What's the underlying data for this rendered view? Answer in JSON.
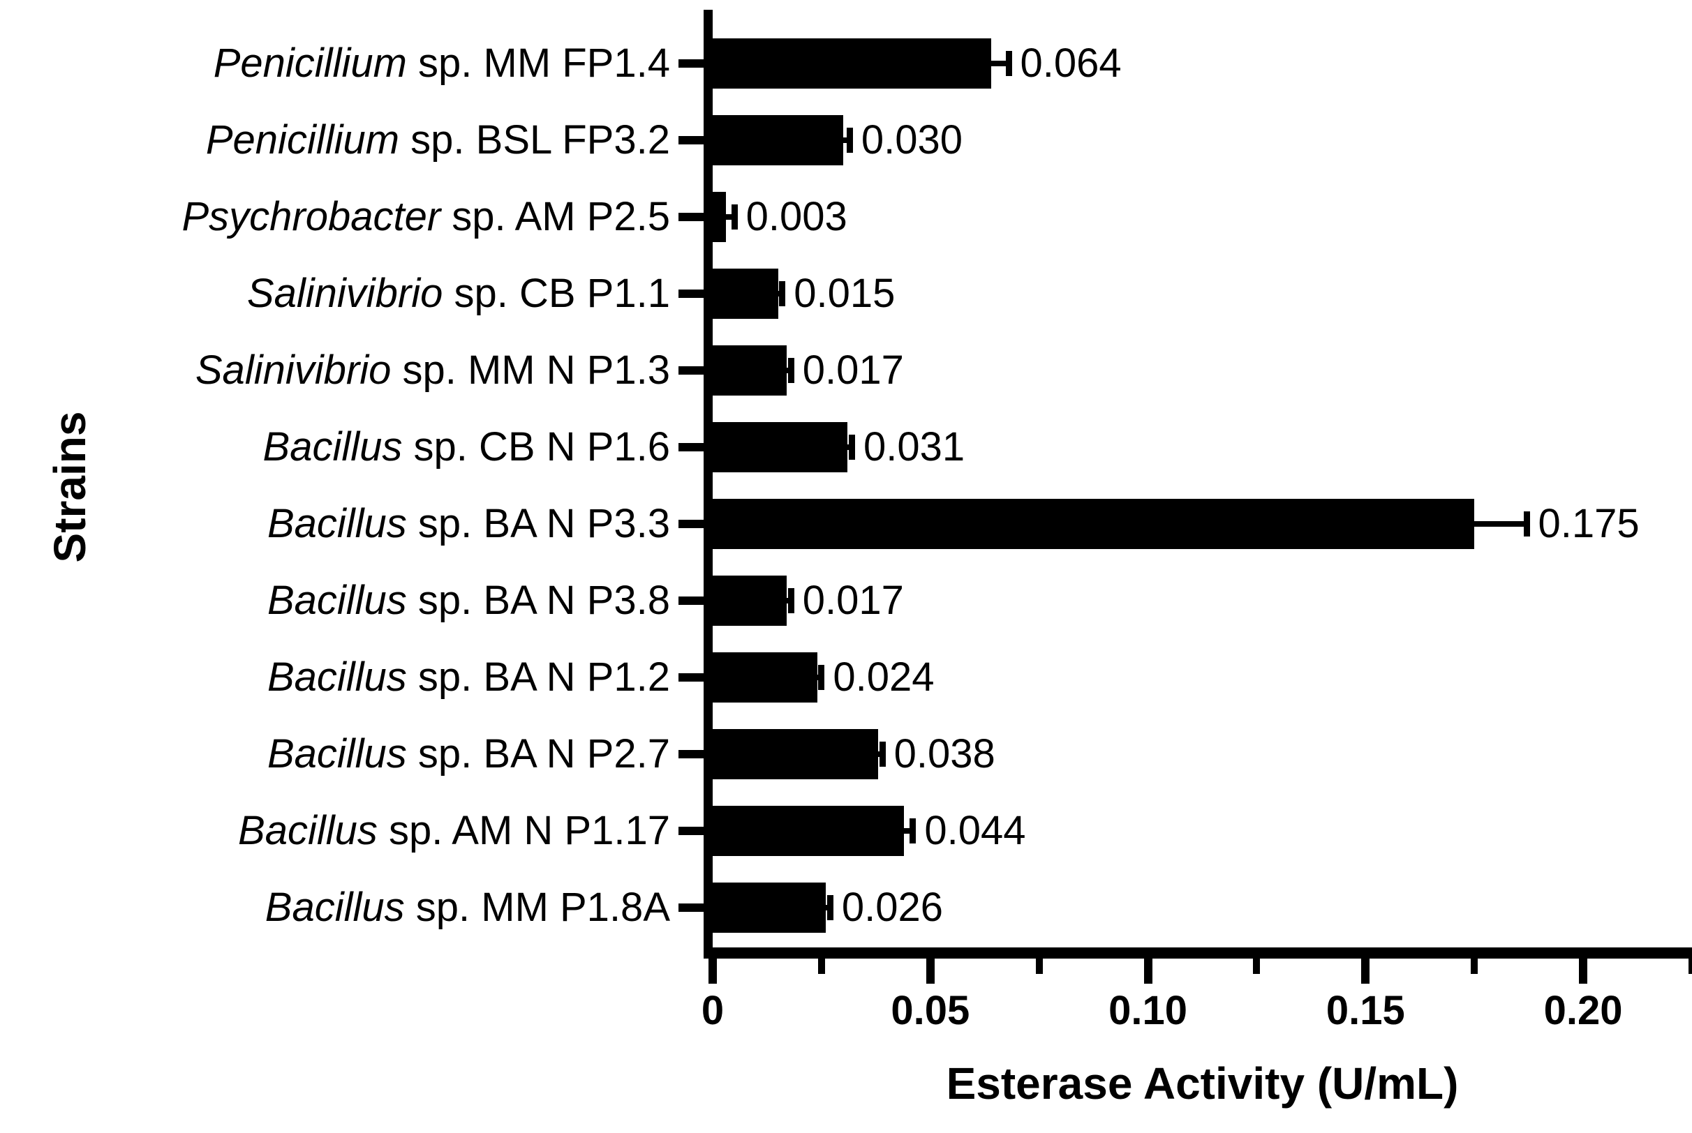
{
  "figure": {
    "background_color": "#ffffff",
    "ink_color": "#000000"
  },
  "chart_data": {
    "type": "bar",
    "orientation": "horizontal",
    "title": "",
    "xlabel": "Esterase Activity (U/mL)",
    "ylabel": "Strains",
    "xlim": [
      0,
      0.225
    ],
    "grid": false,
    "legend": false,
    "bar_color": "#000000",
    "x_major_ticks": [
      {
        "value": 0.0,
        "label": "0"
      },
      {
        "value": 0.05,
        "label": "0.05"
      },
      {
        "value": 0.1,
        "label": "0.10"
      },
      {
        "value": 0.15,
        "label": "0.15"
      },
      {
        "value": 0.2,
        "label": "0.20"
      }
    ],
    "x_minor_tick_values": [
      0.025,
      0.075,
      0.125,
      0.175,
      0.225
    ],
    "bars": [
      {
        "genus": "Penicillium",
        "rest": " sp. MM FP1.4",
        "value": 0.064,
        "error": 0.004,
        "value_label": "0.064"
      },
      {
        "genus": "Penicillium",
        "rest": " sp. BSL FP3.2",
        "value": 0.03,
        "error": 0.0015,
        "value_label": "0.030"
      },
      {
        "genus": "Psychrobacter",
        "rest": " sp. AM P2.5",
        "value": 0.003,
        "error": 0.002,
        "value_label": "0.003"
      },
      {
        "genus": "Salinivibrio",
        "rest": " sp. CB P1.1",
        "value": 0.015,
        "error": 0.001,
        "value_label": "0.015"
      },
      {
        "genus": "Salinivibrio",
        "rest": " sp. MM N P1.3",
        "value": 0.017,
        "error": 0.001,
        "value_label": "0.017"
      },
      {
        "genus": "Bacillus",
        "rest": " sp. CB N P1.6",
        "value": 0.031,
        "error": 0.001,
        "value_label": "0.031"
      },
      {
        "genus": "Bacillus",
        "rest": " sp. BA N P3.3",
        "value": 0.175,
        "error": 0.012,
        "value_label": "0.175"
      },
      {
        "genus": "Bacillus",
        "rest": " sp. BA N P3.8",
        "value": 0.017,
        "error": 0.001,
        "value_label": "0.017"
      },
      {
        "genus": "Bacillus",
        "rest": " sp. BA N P1.2",
        "value": 0.024,
        "error": 0.001,
        "value_label": "0.024"
      },
      {
        "genus": "Bacillus",
        "rest": " sp. BA N P2.7",
        "value": 0.038,
        "error": 0.001,
        "value_label": "0.038"
      },
      {
        "genus": "Bacillus",
        "rest": " sp. AM N P1.17",
        "value": 0.044,
        "error": 0.002,
        "value_label": "0.044"
      },
      {
        "genus": "Bacillus",
        "rest": " sp. MM P1.8A",
        "value": 0.026,
        "error": 0.001,
        "value_label": "0.026"
      }
    ]
  }
}
